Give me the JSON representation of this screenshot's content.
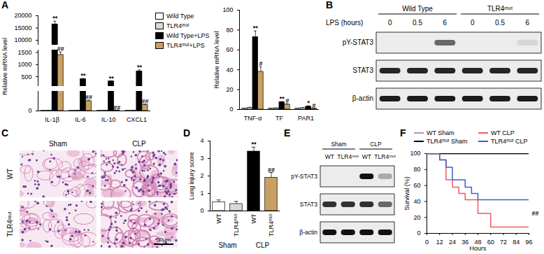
{
  "chart_data": [
    {
      "panel": "A",
      "type": "bar",
      "ylabel": "Relative mRNA level",
      "categories": [
        "IL-1β",
        "IL-6",
        "IL-10",
        "CXCL1"
      ],
      "segments": [
        {
          "ylim": [
            8000,
            20000
          ],
          "yticks": [
            10000,
            15000,
            20000
          ]
        },
        {
          "ylim": [
            100,
            1600
          ],
          "yticks": [
            500,
            1000,
            1500
          ]
        },
        {
          "ylim": [
            0,
            100
          ],
          "yticks": [
            0
          ]
        }
      ],
      "legend": "right",
      "series": [
        {
          "name": "Wild Type",
          "color": "#ffffff",
          "values": [
            1,
            1,
            1,
            1
          ],
          "errors": [
            0.2,
            0.2,
            0.2,
            0.2
          ]
        },
        {
          "name": "TLR4ᵐᵘᵗ",
          "color": "#d9d9d9",
          "values": [
            1.1,
            1.2,
            1.1,
            1.2
          ],
          "errors": [
            0.3,
            0.3,
            0.3,
            0.3
          ]
        },
        {
          "name": "Wild Type+LPS",
          "color": "#000000",
          "values": [
            16500,
            400,
            310,
            720
          ],
          "errors": [
            1300,
            25,
            20,
            60
          ],
          "significance": [
            "**",
            "**",
            "**",
            "**"
          ]
        },
        {
          "name": "TLR4ᵐᵘᵗ+LPS",
          "color": "#c9a064",
          "values": [
            1400,
            50,
            2,
            30
          ],
          "errors": [
            120,
            5,
            0.5,
            4
          ],
          "significance": [
            "##",
            "##",
            "##",
            "##"
          ]
        }
      ]
    },
    {
      "type": "bar",
      "ylabel": "Relative mRNA level",
      "categories": [
        "TNF-α",
        "TF",
        "PAR1"
      ],
      "ylim": [
        0,
        100
      ],
      "yticks": [
        0,
        20,
        40,
        60,
        80,
        100
      ],
      "series": [
        {
          "name": "Wild Type",
          "color": "#ffffff",
          "values": [
            1,
            1,
            1
          ],
          "errors": [
            0.2,
            0.1,
            0.1
          ]
        },
        {
          "name": "TLR4ᵐᵘᵗ",
          "color": "#d9d9d9",
          "values": [
            1.5,
            1.3,
            1.5
          ],
          "errors": [
            0.8,
            0.2,
            0.5
          ]
        },
        {
          "name": "Wild Type+LPS",
          "color": "#000000",
          "values": [
            73,
            7.5,
            3
          ],
          "errors": [
            6,
            0.5,
            0.7
          ],
          "significance": [
            "**",
            "**",
            "*"
          ]
        },
        {
          "name": "TLR4ᵐᵘᵗ+LPS",
          "color": "#c9a064",
          "values": [
            38,
            5,
            1
          ],
          "errors": [
            5,
            0.8,
            0.3
          ],
          "significance": [
            "#",
            "#",
            "#"
          ]
        }
      ]
    },
    {
      "panel": "D",
      "type": "bar",
      "ylabel": "Lung injury score",
      "categories": [
        "WT",
        "TLR4ᵐᵘᵗ",
        "WT",
        "TLR4ᵐᵘᵗ"
      ],
      "groups": [
        "Sham",
        "Sham",
        "CLP",
        "CLP"
      ],
      "values": [
        0.5,
        0.4,
        3.4,
        1.9
      ],
      "errors": [
        0.13,
        0.15,
        0.25,
        0.3
      ],
      "colors": [
        "#ffffff",
        "#d9d9d9",
        "#000000",
        "#c9a064"
      ],
      "significance": [
        null,
        null,
        "**",
        "##"
      ],
      "ylim": [
        0,
        4
      ],
      "yticks": [
        0,
        1,
        2,
        3,
        4
      ]
    },
    {
      "panel": "F",
      "type": "line",
      "xlabel": "Hours",
      "ylabel": "Survival (%)",
      "xlim": [
        0,
        96
      ],
      "xticks": [
        0,
        12,
        24,
        36,
        48,
        60,
        72,
        84,
        96
      ],
      "ylim": [
        0,
        100
      ],
      "yticks": [
        0,
        20,
        40,
        60,
        80,
        100
      ],
      "legend": "top",
      "series": [
        {
          "name": "WT Sham",
          "color": "#9e9e9e",
          "x": [
            0,
            96
          ],
          "values": [
            100,
            100
          ]
        },
        {
          "name": "WT CLP",
          "color": "#f05a5a",
          "x": [
            0,
            12,
            18,
            24,
            30,
            36,
            48,
            60,
            96
          ],
          "values": [
            100,
            92,
            67,
            58,
            50,
            42,
            25,
            8,
            8
          ]
        },
        {
          "name": "TLR4ᵐᵘᵗ Sham",
          "color": "#000000",
          "x": [
            0,
            96
          ],
          "values": [
            100,
            100
          ]
        },
        {
          "name": "TLR4ᵐᵘᵗ CLP",
          "color": "#3d5fd0",
          "x": [
            0,
            12,
            18,
            24,
            36,
            42,
            48,
            96
          ],
          "values": [
            100,
            92,
            83,
            67,
            58,
            50,
            42,
            42
          ]
        }
      ],
      "annotations": [
        {
          "text": "##",
          "between": [
            "WT CLP",
            "TLR4ᵐᵘᵗ CLP"
          ]
        }
      ]
    }
  ],
  "blots": [
    {
      "panel": "B",
      "condition_label": "LPS (hours)",
      "groups": [
        {
          "label": "Wild Type",
          "lanes": [
            0,
            0.5,
            6
          ]
        },
        {
          "label": "TLR4ᵐᵘᵗ",
          "lanes": [
            0,
            0.5,
            6
          ]
        }
      ],
      "rows": [
        {
          "label": "pY-STAT3",
          "intensity": [
            0,
            0,
            0.6,
            0,
            0,
            0.1
          ]
        },
        {
          "label": "STAT3",
          "intensity": [
            0.9,
            0.9,
            0.9,
            0.9,
            0.9,
            0.9
          ]
        },
        {
          "label": "β-actin",
          "intensity": [
            0.95,
            0.95,
            0.95,
            0.95,
            0.95,
            0.95
          ]
        }
      ]
    },
    {
      "panel": "E",
      "groups": [
        {
          "label": "Sham",
          "lanes": [
            "WT",
            "TLR4ᵐᵘᵗ"
          ]
        },
        {
          "label": "CLP",
          "lanes": [
            "WT",
            "TLR4ᵐᵘᵗ"
          ]
        }
      ],
      "rows": [
        {
          "label": "pY-STAT3",
          "intensity": [
            0,
            0,
            1,
            0.3
          ]
        },
        {
          "label": "STAT3",
          "intensity": [
            0.85,
            0.85,
            0.85,
            0.6
          ]
        },
        {
          "label": "β-actin",
          "intensity": [
            1,
            1,
            1,
            1
          ]
        }
      ]
    }
  ],
  "histology": {
    "panel": "C",
    "columns": [
      "Sham",
      "CLP"
    ],
    "rows": [
      "WT",
      "TLR4ᵐᵘᵗ"
    ],
    "scale_bar": "50μm"
  }
}
